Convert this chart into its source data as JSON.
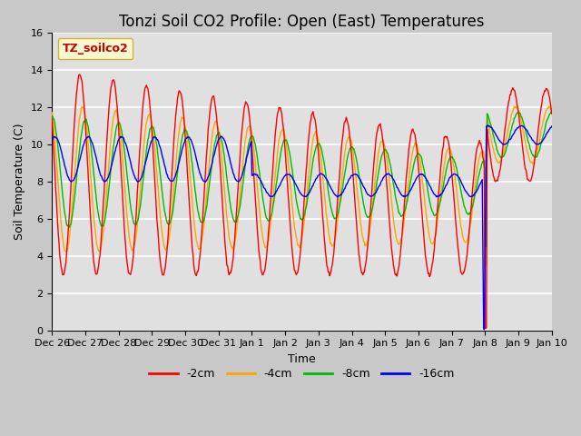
{
  "title": "Tonzi Soil CO2 Profile: Open (East) Temperatures",
  "xlabel": "Time",
  "ylabel": "Soil Temperature (C)",
  "ylim": [
    0,
    16
  ],
  "fig_bg_color": "#c8c8c8",
  "plot_bg_color": "#e0e0e0",
  "series": [
    {
      "label": "-2cm",
      "color": "#ff0000"
    },
    {
      "label": "-4cm",
      "color": "#ffa500"
    },
    {
      "label": "-8cm",
      "color": "#00bb00"
    },
    {
      "label": "-16cm",
      "color": "#0000ff"
    }
  ],
  "xtick_labels": [
    "Dec 26",
    "Dec 27",
    "Dec 28",
    "Dec 29",
    "Dec 30",
    "Dec 31",
    "Jan 1",
    "Jan 2",
    "Jan 3",
    "Jan 4",
    "Jan 5",
    "Jan 6",
    "Jan 7",
    "Jan 8",
    "Jan 9",
    "Jan 10"
  ],
  "yticks": [
    0,
    2,
    4,
    6,
    8,
    10,
    12,
    14,
    16
  ],
  "title_fontsize": 12,
  "axis_label_fontsize": 9,
  "tick_fontsize": 8,
  "legend_title": "TZ_soilco2",
  "legend_title_color": "#cc0000",
  "legend_box_facecolor": "#ffffcc",
  "legend_box_edgecolor": "#ccaa00"
}
